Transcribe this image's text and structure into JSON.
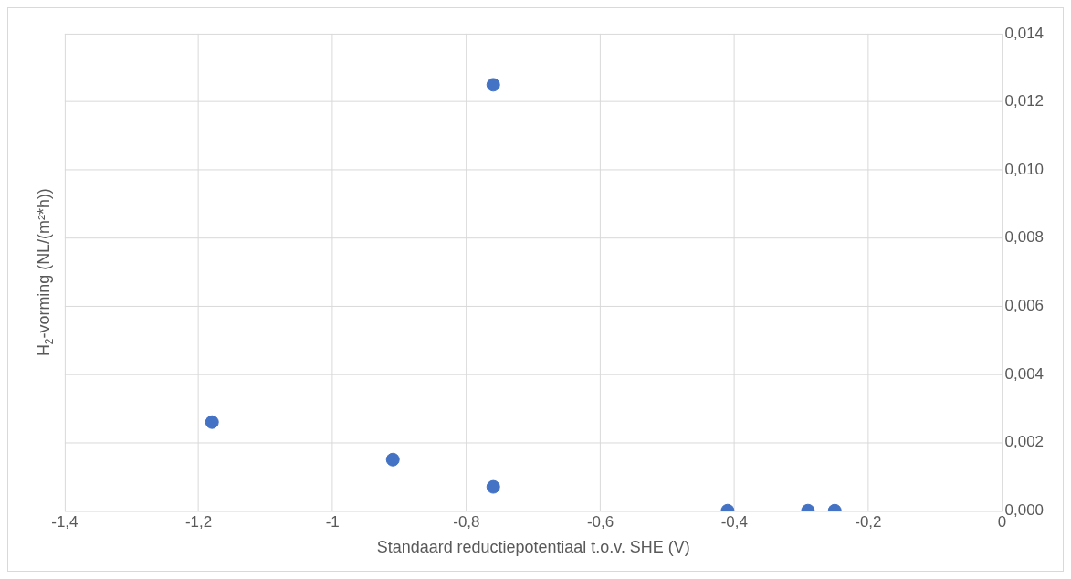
{
  "chart_data": {
    "type": "scatter",
    "xlabel": "Standaard reductiepotentiaal t.o.v. SHE (V)",
    "ylabel": "H$_{2}$-vorming (NL/(m²*h))",
    "x": [
      -1.18,
      -0.91,
      -0.76,
      -0.76,
      -0.41,
      -0.29,
      -0.25
    ],
    "series": [
      {
        "color": "#4472c4",
        "values": [
          0.0026,
          0.0015,
          0.0125,
          0.0007,
          0.0,
          0.0,
          0.0
        ]
      }
    ],
    "xlim": [
      -1.4,
      0
    ],
    "xticks": [
      {
        "value": -1.4,
        "label": "-1,4"
      },
      {
        "value": -1.2,
        "label": "-1,2"
      },
      {
        "value": -1,
        "label": "-1"
      },
      {
        "value": -0.8,
        "label": "-0,8"
      },
      {
        "value": -0.6,
        "label": "-0,6"
      },
      {
        "value": -0.4,
        "label": "-0,4"
      },
      {
        "value": -0.2,
        "label": "-0,2"
      },
      0
    ],
    "ylim": [
      0,
      0.014
    ],
    "yticks": [
      {
        "value": 0,
        "label": "0,000"
      },
      {
        "value": 0.002,
        "label": "0,002"
      },
      {
        "value": 0.004,
        "label": "0,004"
      },
      {
        "value": 0.006,
        "label": "0,006"
      },
      {
        "value": 0.008,
        "label": "0,008"
      },
      {
        "value": 0.01,
        "label": "0,010"
      },
      {
        "value": 0.012,
        "label": "0,012"
      },
      {
        "value": 0.014,
        "label": "0,014"
      }
    ],
    "grid": true,
    "legend": false,
    "marker": "circle"
  }
}
